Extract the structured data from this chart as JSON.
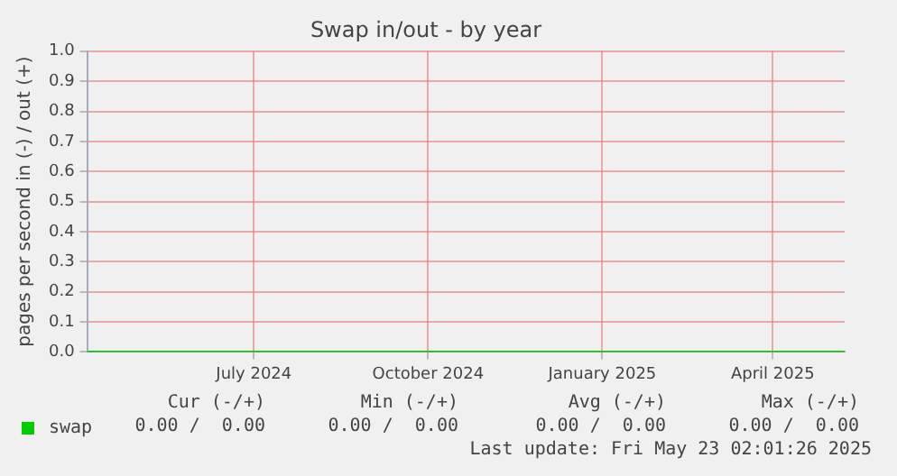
{
  "chart_data": {
    "type": "line",
    "title": "Swap in/out - by year",
    "ylabel": "pages per second in (-) / out (+)",
    "x": [
      "2024-04-18",
      "2025-05-23"
    ],
    "series": [
      {
        "name": "swap",
        "color": "#00cc00",
        "values": [
          0,
          0
        ]
      }
    ],
    "xlim": [
      "2024-04-18",
      "2025-05-23"
    ],
    "xticks": [
      {
        "value": "2024-07-15",
        "label": "July 2024"
      },
      {
        "value": "2024-10-15",
        "label": "October 2024"
      },
      {
        "value": "2025-01-15",
        "label": "January 2025"
      },
      {
        "value": "2025-04-15",
        "label": "April 2025"
      }
    ],
    "ylim": [
      0,
      1
    ],
    "yticks": [
      {
        "value": 0,
        "label": "0.0"
      },
      0.1,
      0.2,
      0.3,
      0.4,
      0.5,
      0.6,
      0.7,
      0.8,
      0.9,
      {
        "value": 1,
        "label": "1.0"
      }
    ],
    "grid": true,
    "legend": "bottom left",
    "marker": "none",
    "line_style": "solid",
    "annotations": [
      "Cur (-/+)",
      "Min (-/+)",
      "Avg (-/+)",
      "Max (-/+)",
      "0.00 /  0.00",
      "0.00 /  0.00",
      "0.00 /  0.00",
      "0.00 /  0.00",
      "Last update: Fri May 23 02:01:26 2025"
    ]
  }
}
